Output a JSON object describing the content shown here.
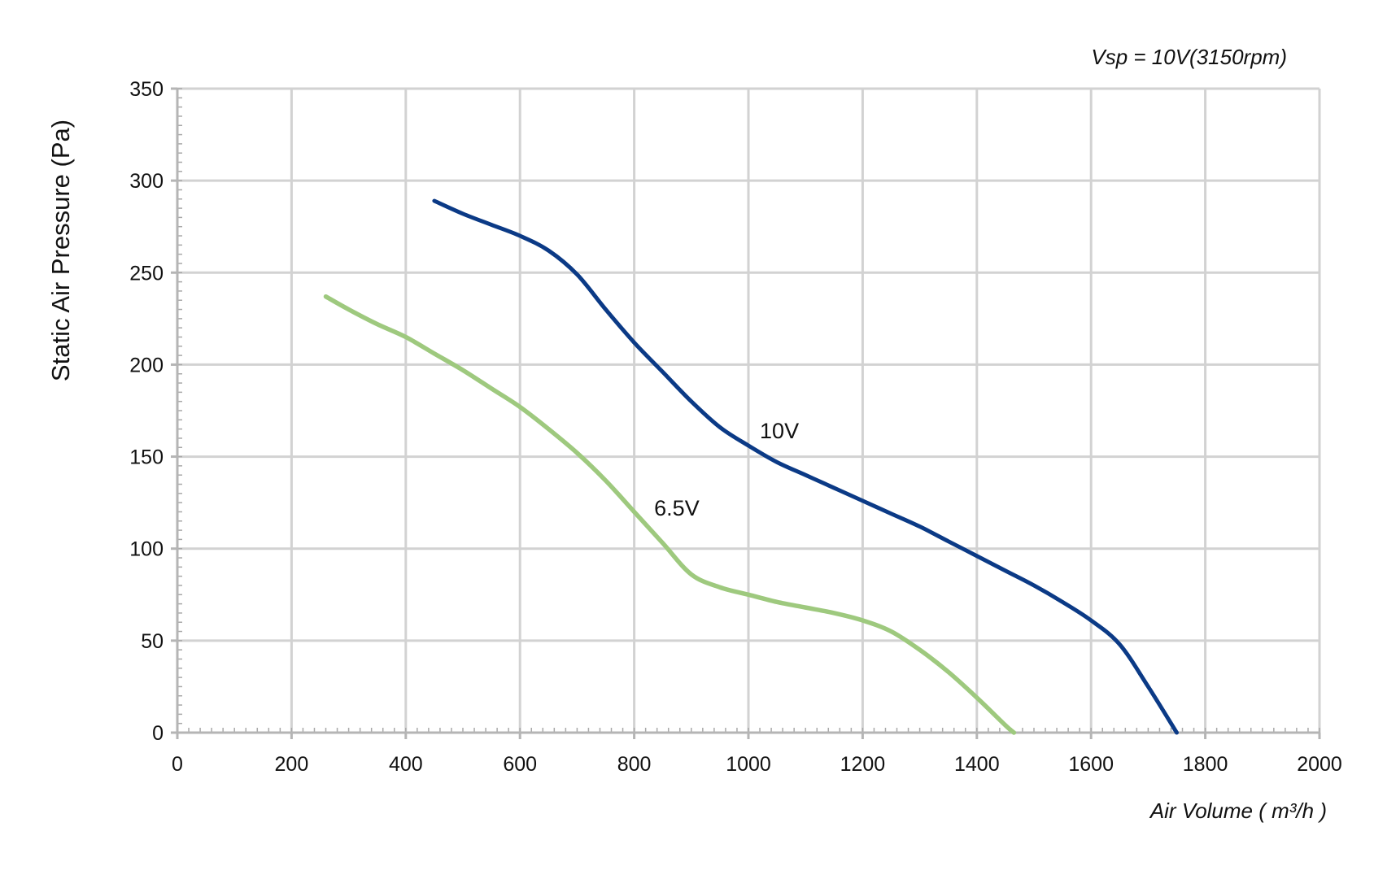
{
  "chart_data": {
    "type": "line",
    "subtitle": "Vsp = 10V(3150rpm)",
    "xlabel": "Air Volume ( m³/h )",
    "ylabel": "Static Air Pressure  (Pa)",
    "xlim": [
      0,
      2000
    ],
    "ylim": [
      0,
      350
    ],
    "x_ticks": [
      0,
      200,
      400,
      600,
      800,
      1000,
      1200,
      1400,
      1600,
      1800,
      2000
    ],
    "y_ticks": [
      0,
      50,
      100,
      150,
      200,
      250,
      300,
      350
    ],
    "grid": true,
    "series": [
      {
        "name": "10V",
        "color": "#0b3a86",
        "points": [
          [
            450,
            289
          ],
          [
            500,
            282
          ],
          [
            550,
            276
          ],
          [
            600,
            270
          ],
          [
            650,
            262
          ],
          [
            700,
            249
          ],
          [
            750,
            230
          ],
          [
            800,
            212
          ],
          [
            850,
            196
          ],
          [
            900,
            180
          ],
          [
            950,
            166
          ],
          [
            1000,
            156
          ],
          [
            1050,
            147
          ],
          [
            1100,
            140
          ],
          [
            1150,
            133
          ],
          [
            1200,
            126
          ],
          [
            1250,
            119
          ],
          [
            1300,
            112
          ],
          [
            1350,
            104
          ],
          [
            1400,
            96
          ],
          [
            1450,
            88
          ],
          [
            1500,
            80
          ],
          [
            1550,
            71
          ],
          [
            1600,
            61
          ],
          [
            1650,
            48
          ],
          [
            1700,
            25
          ],
          [
            1750,
            0
          ]
        ]
      },
      {
        "name": "6.5V",
        "color": "#9ec97e",
        "points": [
          [
            260,
            237
          ],
          [
            300,
            230
          ],
          [
            350,
            222
          ],
          [
            400,
            215
          ],
          [
            450,
            206
          ],
          [
            500,
            197
          ],
          [
            550,
            187
          ],
          [
            600,
            177
          ],
          [
            650,
            165
          ],
          [
            700,
            152
          ],
          [
            750,
            137
          ],
          [
            800,
            120
          ],
          [
            850,
            103
          ],
          [
            900,
            86
          ],
          [
            950,
            79
          ],
          [
            1000,
            75
          ],
          [
            1050,
            71
          ],
          [
            1100,
            68
          ],
          [
            1150,
            65
          ],
          [
            1200,
            61
          ],
          [
            1250,
            55
          ],
          [
            1300,
            45
          ],
          [
            1350,
            33
          ],
          [
            1400,
            19
          ],
          [
            1450,
            4
          ],
          [
            1465,
            0
          ]
        ]
      }
    ],
    "annotations": [
      {
        "text": "10V",
        "x": 1020,
        "y": 160
      },
      {
        "text": "6.5V",
        "x": 835,
        "y": 118
      }
    ]
  }
}
